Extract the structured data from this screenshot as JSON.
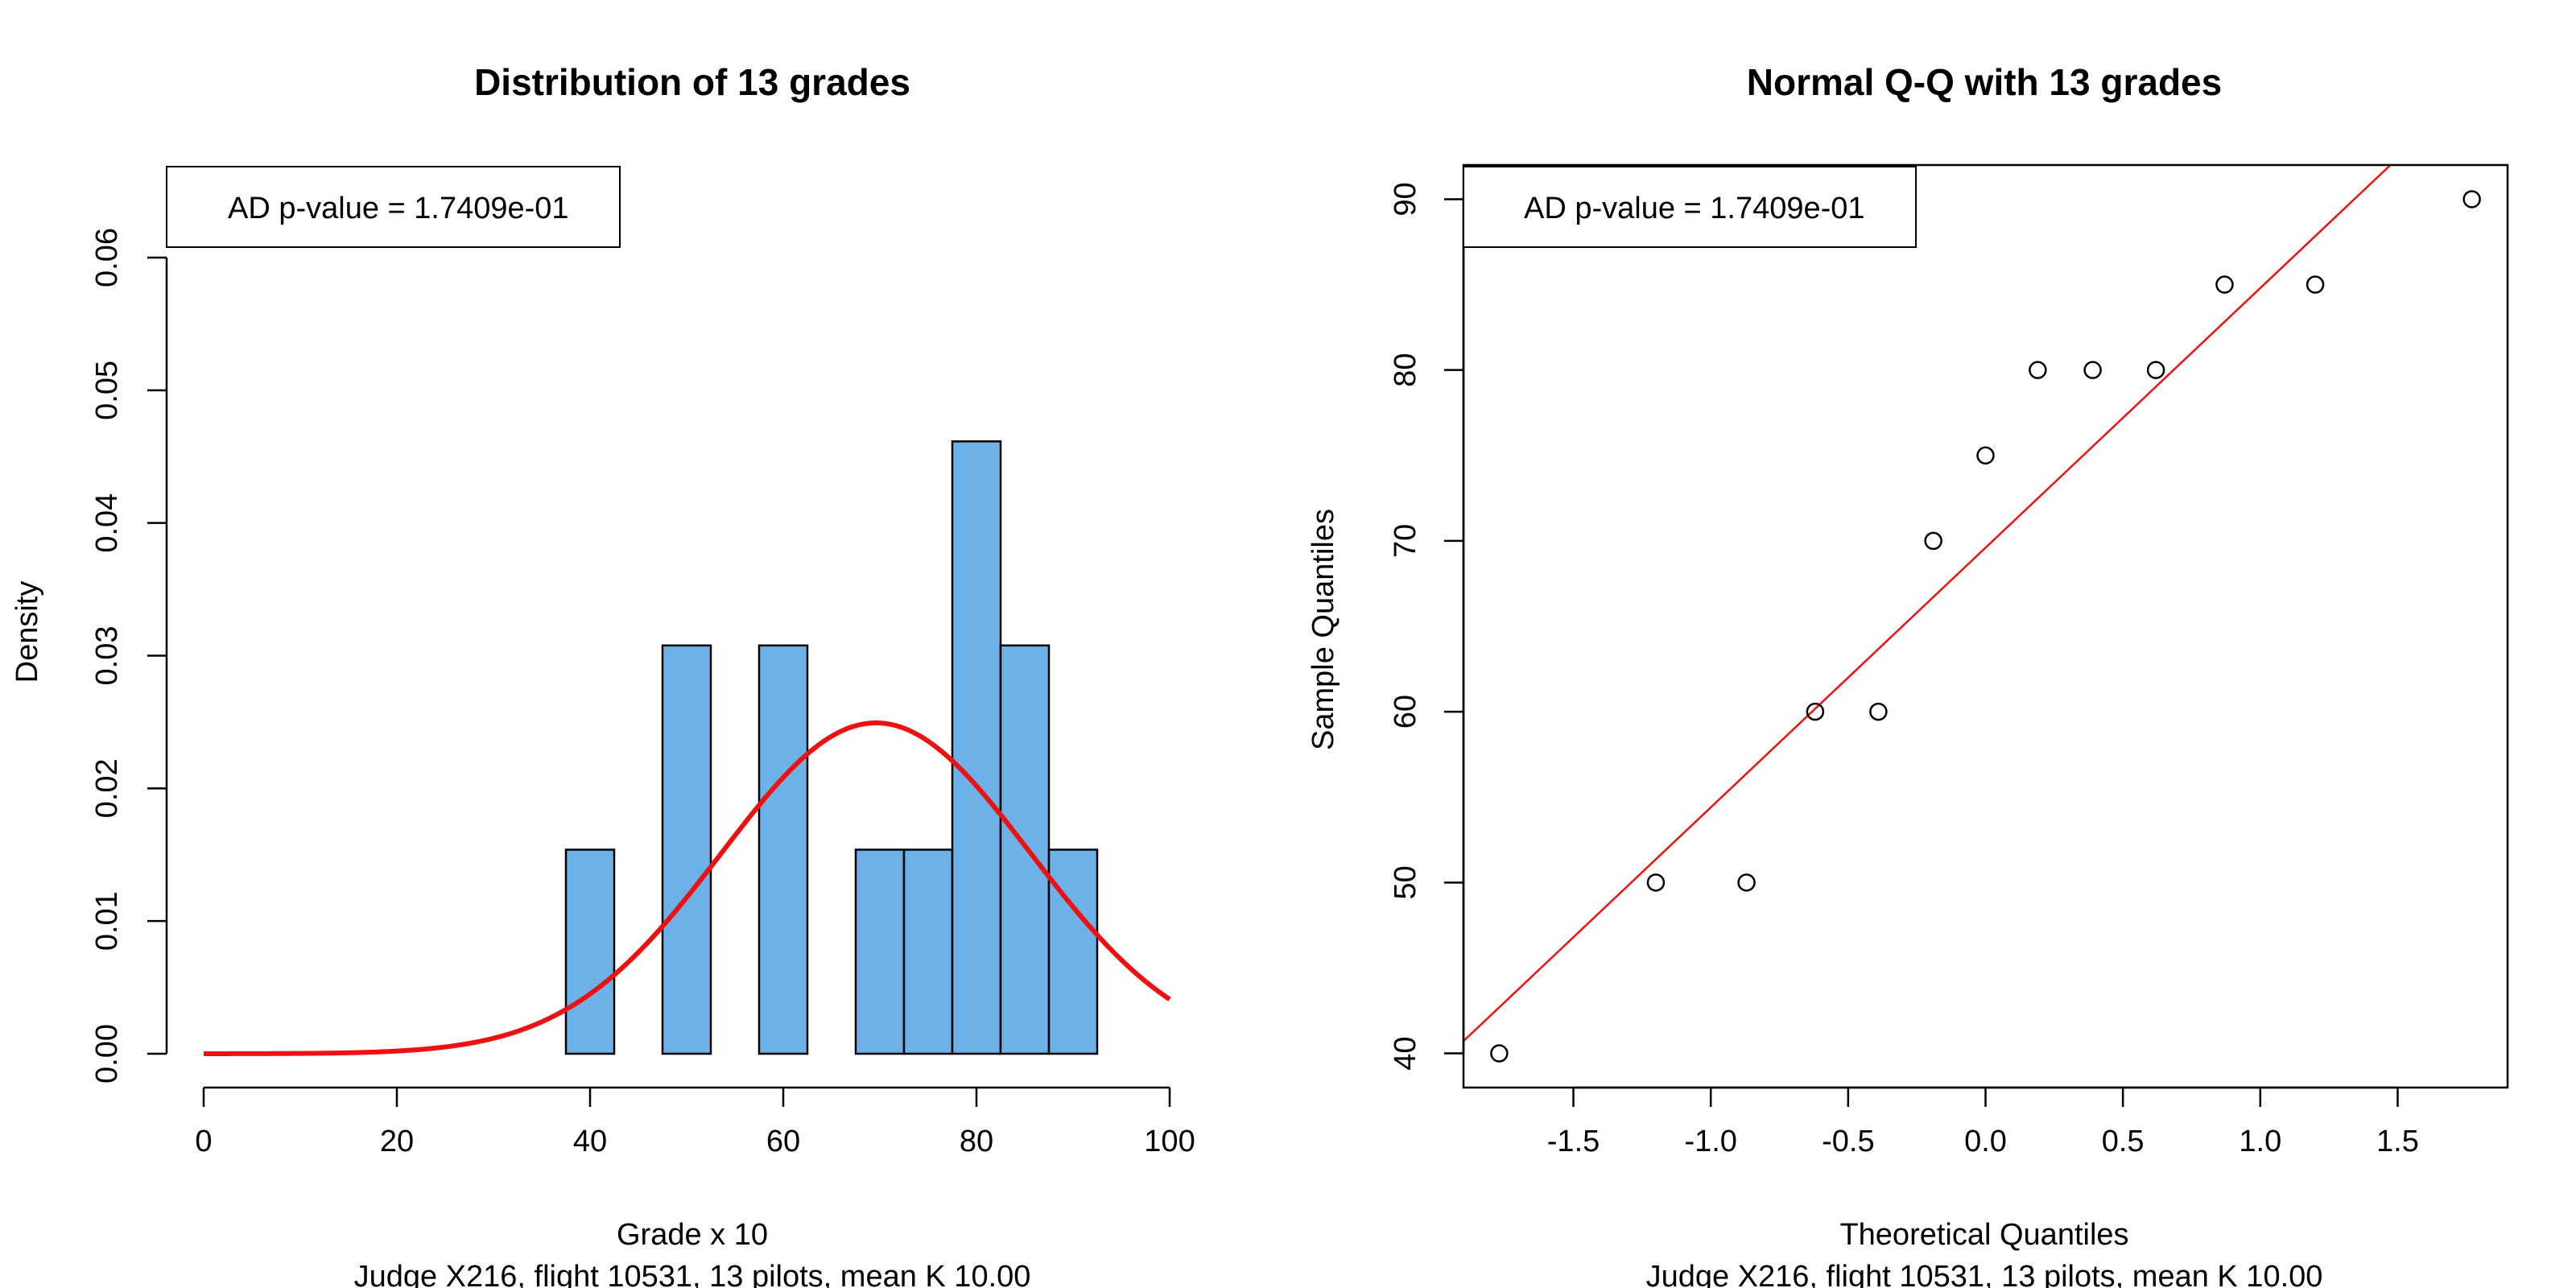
{
  "chart_data": [
    {
      "type": "bar",
      "title": "Distribution of 13 grades",
      "xlabel": "Grade x 10",
      "ylabel": "Density",
      "subtitle": "Judge X216, flight 10531, 13 pilots, mean K 10.00",
      "legend": {
        "text": "AD p-value = 1.7409e-01",
        "position": "top-left"
      },
      "xlim": [
        0,
        100
      ],
      "ylim": [
        0,
        0.06
      ],
      "xticks": [
        "0",
        "20",
        "40",
        "60",
        "80",
        "100"
      ],
      "yticks": [
        "0.00",
        "0.01",
        "0.02",
        "0.03",
        "0.04",
        "0.05",
        "0.06"
      ],
      "bins": [
        {
          "from": 37.5,
          "to": 42.5,
          "density": 0.01538
        },
        {
          "from": 47.5,
          "to": 52.5,
          "density": 0.03077
        },
        {
          "from": 57.5,
          "to": 62.5,
          "density": 0.03077
        },
        {
          "from": 67.5,
          "to": 72.5,
          "density": 0.01538
        },
        {
          "from": 72.5,
          "to": 77.5,
          "density": 0.01538
        },
        {
          "from": 77.5,
          "to": 82.5,
          "density": 0.04615
        },
        {
          "from": 82.5,
          "to": 87.5,
          "density": 0.03077
        },
        {
          "from": 87.5,
          "to": 92.5,
          "density": 0.01538
        }
      ],
      "bar_color": "#6cb2e8",
      "normal_curve": {
        "mean": 69.6,
        "sd": 16.0,
        "color": "#ee1111"
      }
    },
    {
      "type": "scatter",
      "title": "Normal Q-Q with 13 grades",
      "xlabel": "Theoretical Quantiles",
      "ylabel": "Sample Quantiles",
      "subtitle": "Judge X216, flight 10531, 13 pilots, mean K 10.00",
      "legend": {
        "text": "AD p-value = 1.7409e-01",
        "position": "top-left"
      },
      "xlim": [
        -1.9,
        1.9
      ],
      "ylim": [
        38,
        92
      ],
      "xticks": [
        "-1.5",
        "-1.0",
        "-0.5",
        "0.0",
        "0.5",
        "1.0",
        "1.5"
      ],
      "yticks": [
        "40",
        "50",
        "60",
        "70",
        "80",
        "90"
      ],
      "points": [
        {
          "x": -1.77,
          "y": 40
        },
        {
          "x": -1.2,
          "y": 50
        },
        {
          "x": -0.87,
          "y": 50
        },
        {
          "x": -0.62,
          "y": 60
        },
        {
          "x": -0.39,
          "y": 60
        },
        {
          "x": -0.19,
          "y": 70
        },
        {
          "x": 0.0,
          "y": 75
        },
        {
          "x": 0.19,
          "y": 80
        },
        {
          "x": 0.39,
          "y": 80
        },
        {
          "x": 0.62,
          "y": 80
        },
        {
          "x": 0.87,
          "y": 85
        },
        {
          "x": 1.2,
          "y": 85
        },
        {
          "x": 1.77,
          "y": 90
        }
      ],
      "reference_line": {
        "intercept": 69.6,
        "slope": 15.2,
        "color": "#ee1111"
      }
    }
  ]
}
